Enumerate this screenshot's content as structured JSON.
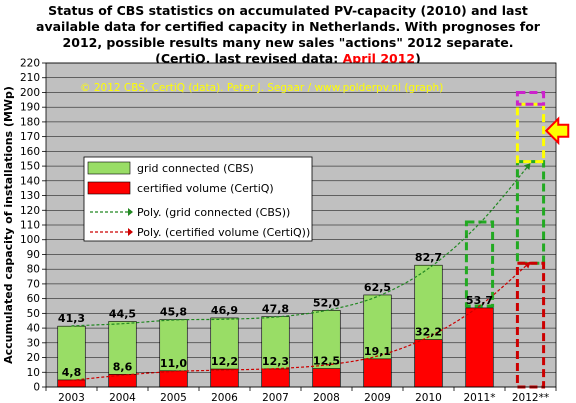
{
  "title": {
    "line1": "Status of CBS statistics  on accumulated  PV-capacity  (2010) and last",
    "line2": "available data for certified capacity in Netherlands.  With prognoses for",
    "line3": "2012, possible results many  new sales \"actions\" 2012 separate.",
    "line4_prefix": "(CertiQ, last revised data: ",
    "line4_date": "April 2012",
    "line4_suffix": ")"
  },
  "copyright": "© 2012 CBS, CertiQ (data). Peter J. Segaar / www.polderpv.nl (graph)",
  "colors": {
    "green_bar": "#99dd66",
    "red_bar": "#ff0000",
    "plot_bg": "#c0c0c0",
    "green_trend": "#228822",
    "red_trend": "#cc0000",
    "prognosis_green": "#22aa22",
    "prognosis_red": "#cc0000",
    "prognosis_yellow": "#ffff00",
    "prognosis_purple": "#cc22cc",
    "arrow_fill": "#ffff00",
    "arrow_stroke": "#ff0000"
  },
  "chart_data": {
    "type": "bar",
    "ylabel": "Accumulated capacity of installations (MWp)",
    "ylim": [
      0,
      220
    ],
    "ytick_step": 10,
    "grid": true,
    "legend_position": "top-left",
    "categories": [
      "2003",
      "2004",
      "2005",
      "2006",
      "2007",
      "2008",
      "2009",
      "2010",
      "2011*",
      "2012**"
    ],
    "series": [
      {
        "name": "grid connected (CBS)",
        "color_key": "green_bar",
        "values": [
          41.3,
          44.5,
          45.8,
          46.9,
          47.8,
          52.0,
          62.5,
          82.7,
          null,
          null
        ],
        "labels": [
          "41,3",
          "44,5",
          "45,8",
          "46,9",
          "47,8",
          "52,0",
          "62,5",
          "82,7",
          "",
          ""
        ]
      },
      {
        "name": "certified volume (CertiQ)",
        "color_key": "red_bar",
        "values": [
          4.8,
          8.6,
          11.0,
          12.2,
          12.3,
          12.5,
          19.1,
          32.2,
          53.7,
          null
        ],
        "labels": [
          "4,8",
          "8,6",
          "11,0",
          "12,2",
          "12,3",
          "12,5",
          "19,1",
          "32,2",
          "53,7",
          ""
        ]
      }
    ],
    "trendlines": [
      {
        "name": "Poly. (grid connected (CBS))",
        "color_key": "green_trend",
        "values": [
          41.5,
          43.0,
          45.5,
          46.0,
          47.5,
          52.0,
          61.5,
          80.5,
          111.0,
          152.0
        ]
      },
      {
        "name": "Poly. (certified volume (CertiQ))",
        "color_key": "red_trend",
        "values": [
          4.5,
          8.0,
          10.5,
          11.5,
          12.5,
          15.0,
          21.0,
          34.0,
          55.0,
          85.0
        ]
      }
    ],
    "prognosis_boxes": [
      {
        "category": "2011*",
        "bottom": 55,
        "top": 112,
        "color_key": "prognosis_green"
      },
      {
        "category": "2012**",
        "bottom": 84,
        "top": 153,
        "color_key": "prognosis_green"
      },
      {
        "category": "2012**",
        "bottom": 0,
        "top": 84,
        "color_key": "prognosis_red"
      },
      {
        "category": "2012**",
        "bottom": 153,
        "top": 192,
        "color_key": "prognosis_yellow"
      },
      {
        "category": "2012**",
        "bottom": 192,
        "top": 200,
        "color_key": "prognosis_purple"
      }
    ],
    "arrow": {
      "category": "2012**",
      "value": 174,
      "direction": "left"
    }
  }
}
